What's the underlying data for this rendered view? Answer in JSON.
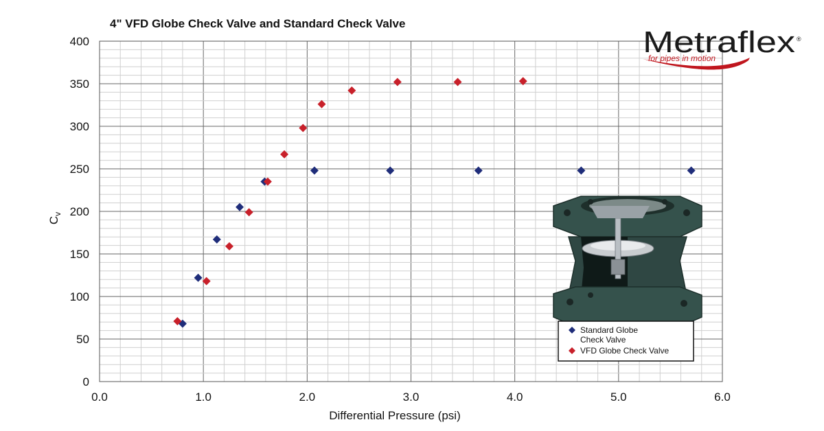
{
  "chart_data": {
    "type": "scatter",
    "title": "4\" VFD Globe Check Valve and Standard Check Valve",
    "xlabel": "Differential Pressure (psi)",
    "ylabel": "C",
    "ylabel_subscript": "v",
    "xlim": [
      0,
      6
    ],
    "ylim": [
      0,
      400
    ],
    "x_major_step": 1,
    "x_minor_step": 0.2,
    "y_major_step": 50,
    "y_minor_step": 10,
    "x_tick_labels": [
      "0.0",
      "1.0",
      "2.0",
      "3.0",
      "4.0",
      "5.0",
      "6.0"
    ],
    "y_tick_labels": [
      "0",
      "50",
      "100",
      "150",
      "200",
      "250",
      "300",
      "350",
      "400"
    ],
    "grid": true,
    "legend_position": "bottom-right",
    "series": [
      {
        "name": "Standard Globe Check Valve",
        "legend_lines": [
          "Standard Globe",
          "Check Valve"
        ],
        "color": "#1f2d7a",
        "marker": "diamond",
        "points": [
          {
            "x": 0.8,
            "y": 68
          },
          {
            "x": 0.95,
            "y": 122
          },
          {
            "x": 1.13,
            "y": 167
          },
          {
            "x": 1.35,
            "y": 205
          },
          {
            "x": 1.59,
            "y": 235
          },
          {
            "x": 2.07,
            "y": 248
          },
          {
            "x": 2.8,
            "y": 248
          },
          {
            "x": 3.65,
            "y": 248
          },
          {
            "x": 4.64,
            "y": 248
          },
          {
            "x": 5.7,
            "y": 248
          }
        ]
      },
      {
        "name": "VFD Globe Check Valve",
        "legend_lines": [
          "VFD Globe Check Valve"
        ],
        "color": "#c8202a",
        "marker": "diamond",
        "points": [
          {
            "x": 0.75,
            "y": 71
          },
          {
            "x": 1.03,
            "y": 118
          },
          {
            "x": 1.25,
            "y": 159
          },
          {
            "x": 1.44,
            "y": 199
          },
          {
            "x": 1.62,
            "y": 235
          },
          {
            "x": 1.78,
            "y": 267
          },
          {
            "x": 1.96,
            "y": 298
          },
          {
            "x": 2.14,
            "y": 326
          },
          {
            "x": 2.43,
            "y": 342
          },
          {
            "x": 2.87,
            "y": 352
          },
          {
            "x": 3.45,
            "y": 352
          },
          {
            "x": 4.08,
            "y": 353
          }
        ]
      }
    ]
  },
  "logo": {
    "word": "Metraflex",
    "registered": "®",
    "tagline": "for pipes in motion",
    "text_color": "#1a1a1a",
    "accent_color": "#c0161e"
  },
  "legend_colors": {
    "border": "#111111"
  },
  "image": {
    "subject": "valve-cutaway-icon"
  }
}
